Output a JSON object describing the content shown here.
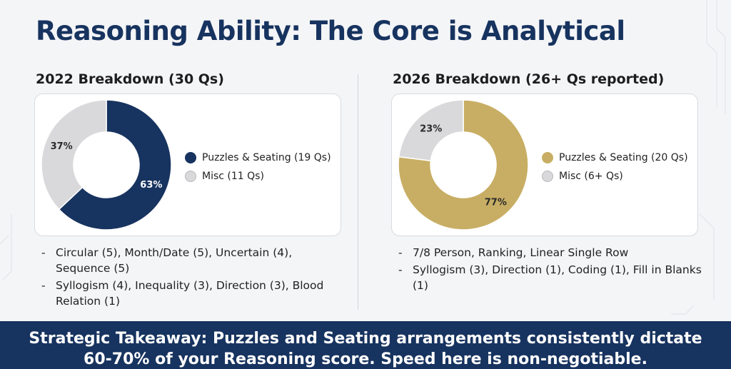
{
  "slide": {
    "title": "Reasoning Ability: The Core is Analytical"
  },
  "panels": [
    {
      "heading": "2022 Breakdown (30 Qs)",
      "notes": [
        "Circular (5), Month/Date (5), Uncertain (4), Sequence (5)",
        "Syllogism (4), Inequality (3), Direction (3), Blood Relation (1)"
      ]
    },
    {
      "heading": "2026 Breakdown (26+ Qs reported)",
      "notes": [
        "7/8 Person, Ranking, Linear Single Row",
        "Syllogism (3), Direction (1), Coding (1), Fill in Blanks (1)"
      ]
    }
  ],
  "chart_data": [
    {
      "type": "pie",
      "title": "2022 Breakdown (30 Qs)",
      "categories": [
        "Puzzles & Seating (19 Qs)",
        "Misc (11 Qs)"
      ],
      "values": [
        63,
        37
      ],
      "labels": [
        "63%",
        "37%"
      ],
      "colors": [
        "#17335f",
        "#d9d9db"
      ],
      "legend": "right"
    },
    {
      "type": "pie",
      "title": "2026 Breakdown (26+ Qs reported)",
      "categories": [
        "Puzzles & Seating (20 Qs)",
        "Misc (6+ Qs)"
      ],
      "values": [
        77,
        23
      ],
      "labels": [
        "77%",
        "23%"
      ],
      "colors": [
        "#c8ae64",
        "#d9d9db"
      ],
      "legend": "right"
    }
  ],
  "banner": {
    "text": "Strategic Takeaway: Puzzles and Seating arrangements consistently dictate 60-70% of your Reasoning score. Speed here is non-negotiable."
  }
}
